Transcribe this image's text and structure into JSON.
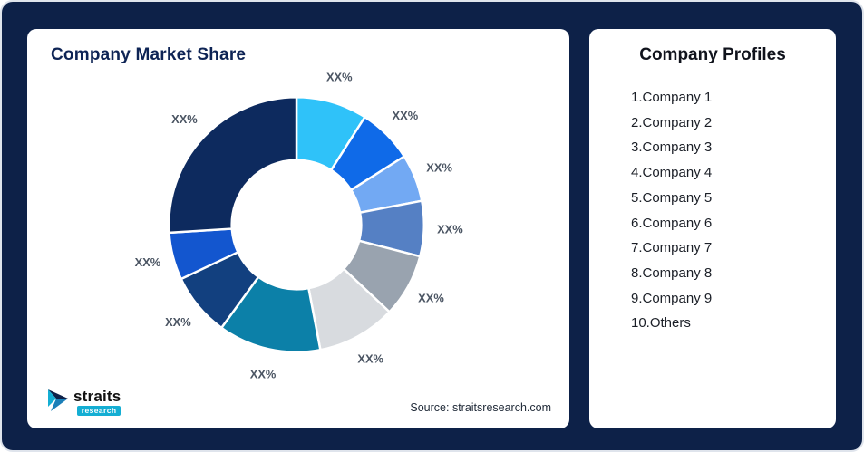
{
  "left_card": {
    "title": "Company Market Share",
    "source": "Source: straitsresearch.com",
    "logo": {
      "brand": "straits",
      "sub": "research"
    }
  },
  "right_card": {
    "title": "Company Profiles",
    "items": [
      "1.Company 1",
      "2.Company 2",
      "3.Company 3",
      "4.Company 4",
      "5.Company 5",
      "6.Company 6",
      "7.Company 7",
      "8.Company 8",
      "9.Company 9",
      "10.Others"
    ]
  },
  "chart_data": {
    "type": "pie",
    "title": "Company Market Share",
    "donut": true,
    "inner_radius_ratio": 0.51,
    "start_angle_deg": 0,
    "direction": "clockwise",
    "value_unit": "percent (masked as XX% in figure)",
    "series": [
      {
        "name": "Company 1",
        "value": 9,
        "label": "XX%",
        "color": "#2fc2f9"
      },
      {
        "name": "Company 2",
        "value": 7,
        "label": "XX%",
        "color": "#0f6ae8"
      },
      {
        "name": "Company 3",
        "value": 6,
        "label": "XX%",
        "color": "#72a9f3"
      },
      {
        "name": "Company 4",
        "value": 7,
        "label": "XX%",
        "color": "#5580c4"
      },
      {
        "name": "Company 5",
        "value": 8,
        "label": "XX%",
        "color": "#99a3af"
      },
      {
        "name": "Company 6",
        "value": 10,
        "label": "XX%",
        "color": "#d8dbdf"
      },
      {
        "name": "Company 7",
        "value": 13,
        "label": "XX%",
        "color": "#0c80a8"
      },
      {
        "name": "Company 8",
        "value": 8,
        "label": "XX%",
        "color": "#12407f"
      },
      {
        "name": "Company 9",
        "value": 6,
        "label": "XX%",
        "color": "#1356cf"
      },
      {
        "name": "Others",
        "value": 26,
        "label": "XX%",
        "color": "#0d2a5e"
      }
    ]
  }
}
